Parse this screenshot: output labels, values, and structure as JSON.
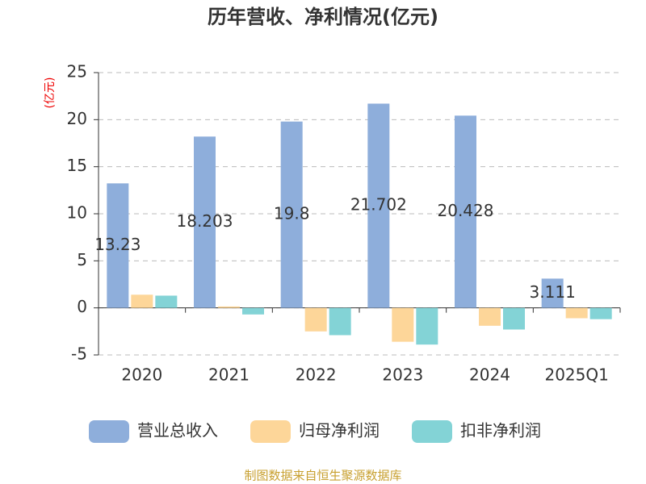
{
  "chart_data": {
    "type": "bar",
    "title": "历年营收、净利情况(亿元)",
    "y_label": "(亿元)",
    "categories": [
      "2020",
      "2021",
      "2022",
      "2023",
      "2024",
      "2025Q1"
    ],
    "series": [
      {
        "name": "营业总收入",
        "color": "#8eaedb",
        "values": [
          13.23,
          18.203,
          19.8,
          21.702,
          20.428,
          3.111
        ],
        "show_labels": true
      },
      {
        "name": "归母净利润",
        "color": "#fdd699",
        "values": [
          1.4,
          0.15,
          -2.5,
          -3.6,
          -1.9,
          -1.1
        ]
      },
      {
        "name": "扣非净利润",
        "color": "#83d3d6",
        "values": [
          1.3,
          -0.7,
          -2.9,
          -3.9,
          -2.3,
          -1.2
        ]
      }
    ],
    "ylim": [
      -5,
      25
    ],
    "yticks": [
      -5,
      0,
      5,
      10,
      15,
      20,
      25
    ],
    "grid": true,
    "legend": "bottom",
    "source": "制图数据来自恒生聚源数据库"
  }
}
